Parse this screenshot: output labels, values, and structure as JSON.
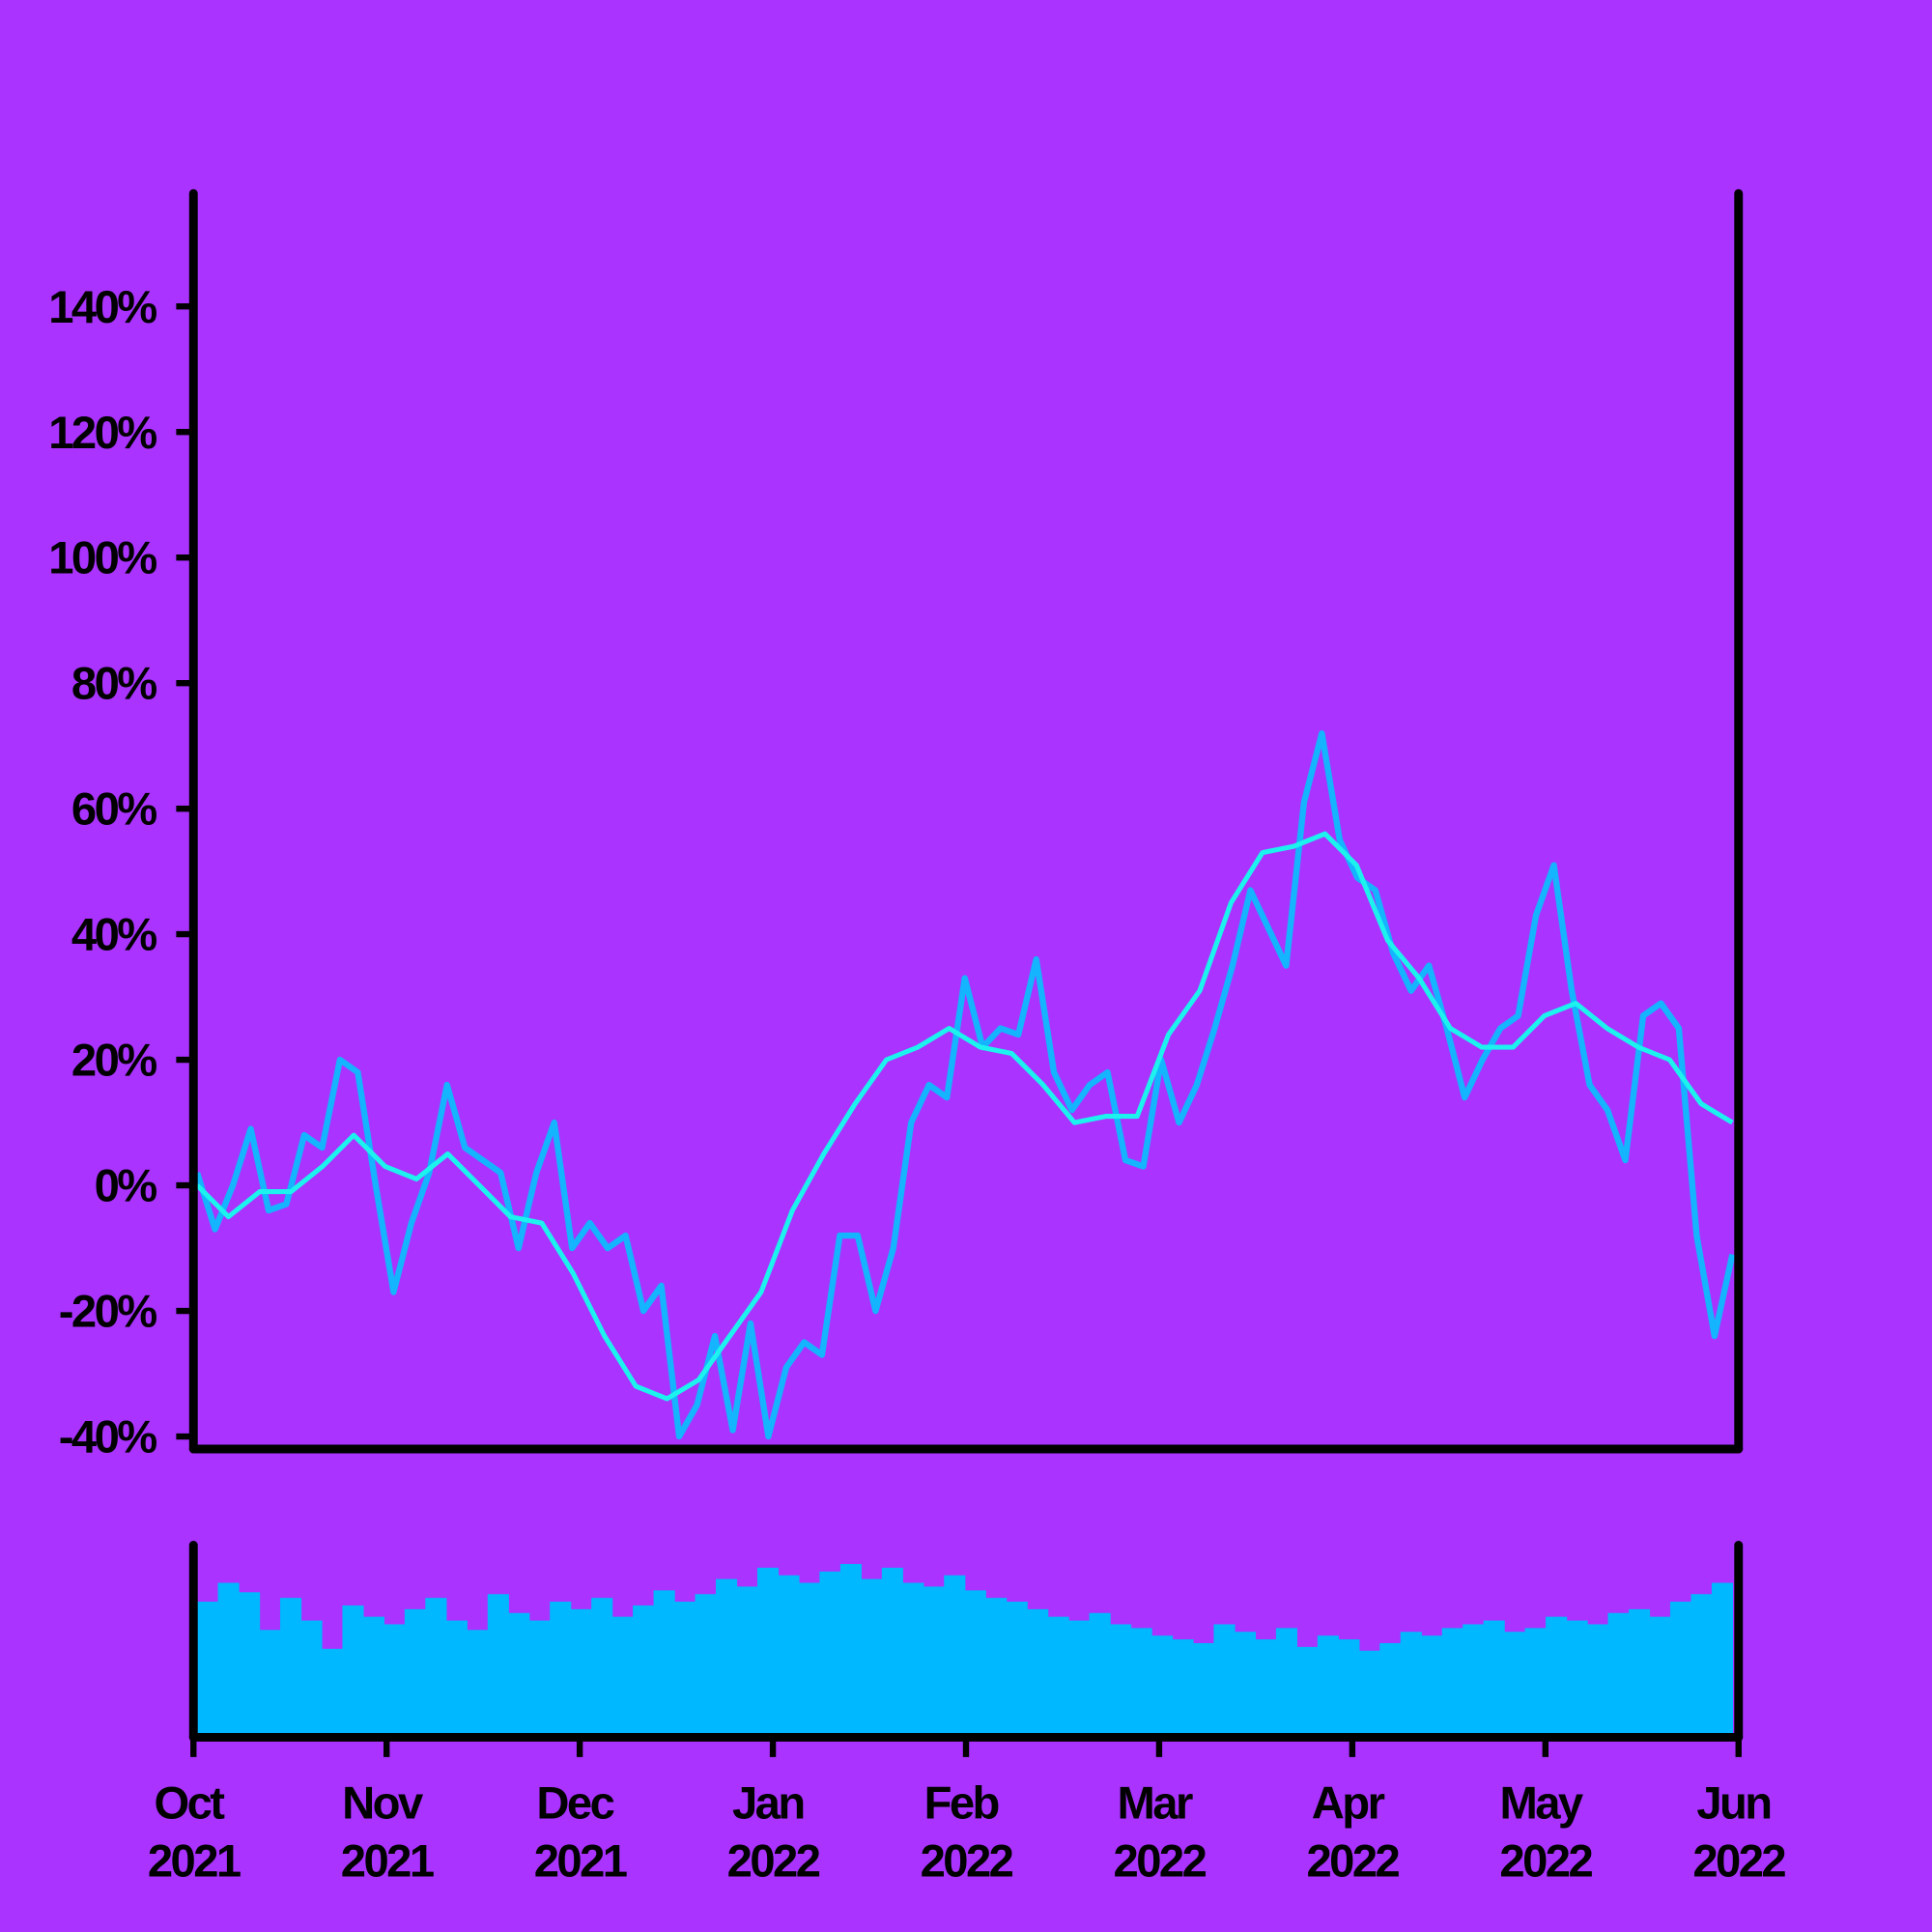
{
  "chart_data": {
    "type": "line",
    "xlim": [
      "2021-10",
      "2022-06"
    ],
    "xticks": [
      {
        "value": "2021-10",
        "label": "Oct 2021"
      },
      {
        "value": "2021-11",
        "label": "Nov 2021"
      },
      {
        "value": "2021-12",
        "label": "Dec 2021"
      },
      {
        "value": "2022-01",
        "label": "Jan 2022"
      },
      {
        "value": "2022-02",
        "label": "Feb 2022"
      },
      {
        "value": "2022-03",
        "label": "Mar 2022"
      },
      {
        "value": "2022-04",
        "label": "Apr 2022"
      },
      {
        "value": "2022-05",
        "label": "May 2022"
      },
      {
        "value": "2022-06",
        "label": "Jun 2022"
      }
    ],
    "ylim": [
      -42,
      158
    ],
    "yticks": [
      {
        "value": -40,
        "label": "-40%"
      },
      {
        "value": -20,
        "label": "-20%"
      },
      {
        "value": 0,
        "label": "0%"
      },
      {
        "value": 20,
        "label": "20%"
      },
      {
        "value": 40,
        "label": "40%"
      },
      {
        "value": 60,
        "label": "60%"
      },
      {
        "value": 80,
        "label": "80%"
      },
      {
        "value": 100,
        "label": "100%"
      },
      {
        "value": 120,
        "label": "120%"
      },
      {
        "value": 140,
        "label": "140%"
      }
    ],
    "series": [
      {
        "color": "#14b4ff",
        "values": [
          2,
          -7,
          0,
          9,
          -4,
          -3,
          8,
          6,
          20,
          18,
          0,
          -17,
          -6,
          2,
          16,
          6,
          4,
          2,
          -10,
          2,
          10,
          -10,
          -6,
          -10,
          -8,
          -20,
          -16,
          -40,
          -35,
          -24,
          -39,
          -22,
          -40,
          -29,
          -25,
          -27,
          -8,
          -8,
          -20,
          -10,
          10,
          16,
          14,
          33,
          22,
          25,
          24,
          36,
          18,
          12,
          16,
          18,
          4,
          3,
          20,
          10,
          16,
          25,
          35,
          47,
          41,
          35,
          61,
          72,
          55,
          49,
          47,
          37,
          31,
          35,
          25,
          14,
          20,
          25,
          27,
          43,
          51,
          31,
          16,
          12,
          4,
          27,
          29,
          25,
          -8,
          -24,
          -11
        ]
      },
      {
        "color": "#1cf2ee",
        "values": [
          0,
          -5,
          -1,
          -1,
          3,
          8,
          3,
          1,
          5,
          0,
          -5,
          -6,
          -14,
          -24,
          -32,
          -34,
          -31,
          -24,
          -17,
          -4,
          5,
          13,
          20,
          22,
          25,
          22,
          21,
          16,
          10,
          11,
          11,
          24,
          31,
          45,
          53,
          54,
          56,
          51,
          39,
          33,
          25,
          22,
          22,
          27,
          29,
          25,
          22,
          20,
          13,
          10
        ]
      }
    ],
    "volume": {
      "color": "#00b8ff",
      "ylim": [
        0,
        100
      ],
      "values": [
        70,
        80,
        75,
        55,
        72,
        60,
        45,
        68,
        62,
        58,
        66,
        72,
        60,
        55,
        74,
        64,
        60,
        70,
        66,
        72,
        62,
        68,
        76,
        70,
        74,
        82,
        78,
        88,
        84,
        80,
        86,
        90,
        82,
        88,
        80,
        78,
        84,
        76,
        72,
        70,
        66,
        62,
        60,
        64,
        58,
        56,
        52,
        50,
        48,
        58,
        54,
        50,
        56,
        46,
        52,
        50,
        44,
        48,
        54,
        52,
        56,
        58,
        60,
        54,
        56,
        62,
        60,
        58,
        64,
        66,
        62,
        70,
        74,
        80
      ]
    }
  }
}
